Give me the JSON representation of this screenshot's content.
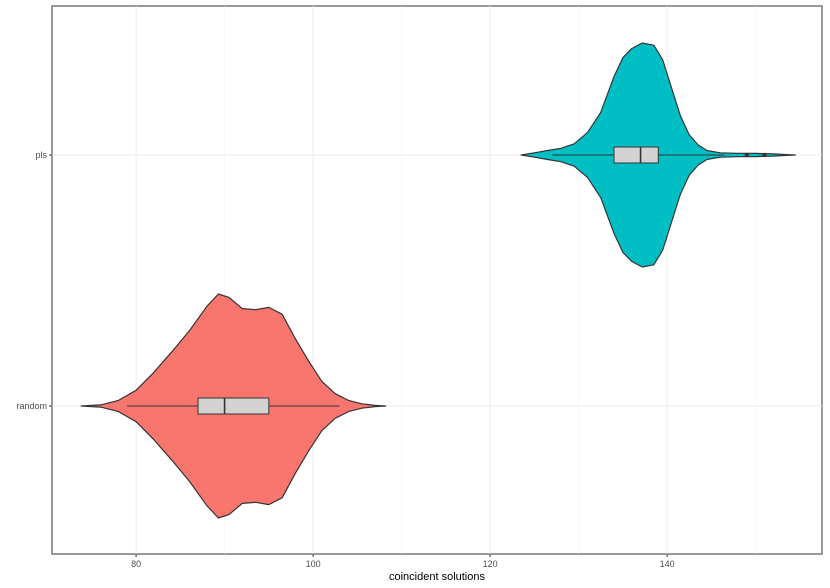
{
  "chart_data": {
    "type": "violin",
    "orientation": "horizontal",
    "title": "",
    "xlabel": "coincident solutions",
    "ylabel": "",
    "xlim": [
      70.5,
      157.5
    ],
    "x_ticks": [
      80,
      100,
      120,
      140
    ],
    "x_tick_labels": [
      "80",
      "100",
      "120",
      "140"
    ],
    "categories": [
      "pls",
      "random"
    ],
    "grid": true,
    "legend": "none",
    "series": [
      {
        "category": "pls",
        "color": "#00BFC4",
        "box": {
          "q1": 134.0,
          "median": 137.0,
          "q3": 139.0,
          "whisker_low": 127.0,
          "whisker_high": 146.5
        },
        "outliers": [
          149.0,
          151.0
        ],
        "density": [
          [
            123.5,
            0.0
          ],
          [
            125.0,
            0.02
          ],
          [
            126.5,
            0.04
          ],
          [
            128.0,
            0.06
          ],
          [
            129.5,
            0.1
          ],
          [
            131.0,
            0.2
          ],
          [
            132.5,
            0.38
          ],
          [
            134.0,
            0.7
          ],
          [
            135.0,
            0.87
          ],
          [
            136.0,
            0.95
          ],
          [
            137.2,
            1.0
          ],
          [
            138.5,
            0.98
          ],
          [
            139.5,
            0.85
          ],
          [
            140.5,
            0.6
          ],
          [
            141.5,
            0.35
          ],
          [
            142.5,
            0.18
          ],
          [
            143.5,
            0.09
          ],
          [
            144.5,
            0.04
          ],
          [
            146.0,
            0.02
          ],
          [
            148.0,
            0.015
          ],
          [
            150.0,
            0.014
          ],
          [
            152.0,
            0.01
          ],
          [
            153.5,
            0.004
          ],
          [
            154.5,
            0.0
          ]
        ]
      },
      {
        "category": "random",
        "color": "#F8766D",
        "box": {
          "q1": 87.0,
          "median": 90.0,
          "q3": 95.0,
          "whisker_low": 79.0,
          "whisker_high": 103.0
        },
        "outliers": [],
        "density": [
          [
            73.8,
            0.0
          ],
          [
            76.0,
            0.01
          ],
          [
            78.0,
            0.05
          ],
          [
            80.0,
            0.14
          ],
          [
            82.0,
            0.3
          ],
          [
            84.0,
            0.48
          ],
          [
            86.0,
            0.67
          ],
          [
            88.0,
            0.89
          ],
          [
            89.3,
            1.0
          ],
          [
            90.5,
            0.97
          ],
          [
            92.0,
            0.87
          ],
          [
            93.5,
            0.86
          ],
          [
            95.0,
            0.88
          ],
          [
            96.5,
            0.82
          ],
          [
            98.0,
            0.6
          ],
          [
            99.5,
            0.4
          ],
          [
            101.0,
            0.22
          ],
          [
            102.5,
            0.11
          ],
          [
            104.0,
            0.05
          ],
          [
            105.5,
            0.02
          ],
          [
            107.0,
            0.005
          ],
          [
            108.2,
            0.0
          ]
        ]
      }
    ]
  }
}
